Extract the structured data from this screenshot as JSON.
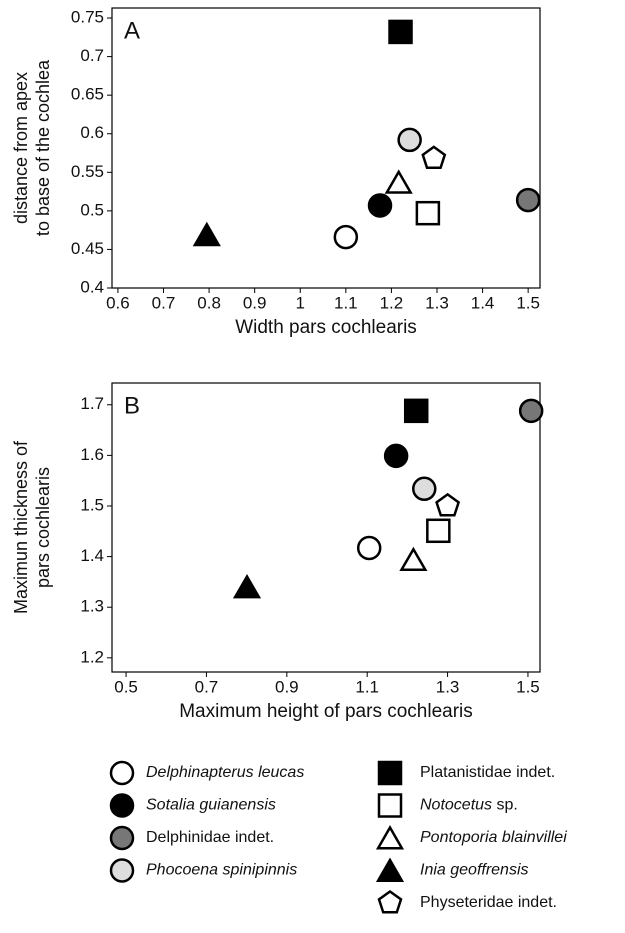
{
  "chart_data": [
    {
      "type": "scatter",
      "label": "A",
      "xlabel": "Width pars cochlearis",
      "ylabel": [
        "distance from apex",
        "to base of the cochlea"
      ],
      "xlim": [
        0.587,
        1.526
      ],
      "ylim": [
        0.4,
        0.763
      ],
      "xticks": [
        0.6,
        0.7,
        0.8,
        0.9,
        1,
        1.1,
        1.2,
        1.3,
        1.4,
        1.5
      ],
      "yticks": [
        0.4,
        0.45,
        0.5,
        0.55,
        0.6,
        0.65,
        0.7,
        0.75
      ],
      "series": [
        {
          "name": "Delphinapterus leucas",
          "italic_words": 2,
          "marker": "circle",
          "color": "#ffffff",
          "x": [
            1.1
          ],
          "values": [
            0.466
          ]
        },
        {
          "name": "Sotalia guianensis",
          "italic_words": 2,
          "marker": "circle",
          "color": "#000000",
          "x": [
            1.175
          ],
          "values": [
            0.507
          ]
        },
        {
          "name": "Delphinidae indet.",
          "italic_words": 0,
          "marker": "circle",
          "color": "#777777",
          "x": [
            1.5
          ],
          "values": [
            0.514
          ]
        },
        {
          "name": "Phocoena spinipinnis",
          "italic_words": 2,
          "marker": "circle",
          "color": "#dddddd",
          "x": [
            1.24
          ],
          "values": [
            0.592
          ]
        },
        {
          "name": "Platanistidae indet.",
          "italic_words": 0,
          "marker": "square",
          "color": "#000000",
          "x": [
            1.22
          ],
          "values": [
            0.732
          ]
        },
        {
          "name": "Notocetus sp.",
          "italic_words": 1,
          "marker": "square",
          "color": "#ffffff",
          "x": [
            1.28
          ],
          "values": [
            0.497
          ]
        },
        {
          "name": "Pontoporia blainvillei",
          "italic_words": 2,
          "marker": "triangle",
          "color": "#ffffff",
          "x": [
            1.216
          ],
          "values": [
            0.537
          ]
        },
        {
          "name": "Inia geoffrensis",
          "italic_words": 2,
          "marker": "triangle",
          "color": "#000000",
          "x": [
            0.795
          ],
          "values": [
            0.469
          ]
        },
        {
          "name": "Physeteridae indet.",
          "italic_words": 0,
          "marker": "pentagon",
          "color": "#ffffff",
          "x": [
            1.293
          ],
          "values": [
            0.568
          ]
        }
      ]
    },
    {
      "type": "scatter",
      "label": "B",
      "xlabel": "Maximum height of pars cochlearis",
      "ylabel": [
        "Maximun thickness of",
        "pars cochlearis"
      ],
      "xlim": [
        0.465,
        1.53
      ],
      "ylim": [
        1.172,
        1.743
      ],
      "xticks": [
        0.5,
        0.7,
        0.9,
        1.1,
        1.3,
        1.5
      ],
      "yticks": [
        1.2,
        1.3,
        1.4,
        1.5,
        1.6,
        1.7
      ],
      "series": [
        {
          "name": "Delphinapterus leucas",
          "marker": "circle",
          "color": "#ffffff",
          "x": [
            1.105
          ],
          "values": [
            1.417
          ]
        },
        {
          "name": "Sotalia guianensis",
          "marker": "circle",
          "color": "#000000",
          "x": [
            1.172
          ],
          "values": [
            1.599
          ]
        },
        {
          "name": "Delphinidae indet.",
          "marker": "circle",
          "color": "#777777",
          "x": [
            1.508
          ],
          "values": [
            1.688
          ]
        },
        {
          "name": "Phocoena spinipinnis",
          "marker": "circle",
          "color": "#dddddd",
          "x": [
            1.242
          ],
          "values": [
            1.534
          ]
        },
        {
          "name": "Platanistidae indet.",
          "marker": "square",
          "color": "#000000",
          "x": [
            1.222
          ],
          "values": [
            1.688
          ]
        },
        {
          "name": "Notocetus sp.",
          "marker": "square",
          "color": "#ffffff",
          "x": [
            1.277
          ],
          "values": [
            1.451
          ]
        },
        {
          "name": "Pontoporia blainvillei",
          "marker": "triangle",
          "color": "#ffffff",
          "x": [
            1.215
          ],
          "values": [
            1.394
          ]
        },
        {
          "name": "Inia geoffrensis",
          "marker": "triangle",
          "color": "#000000",
          "x": [
            0.801
          ],
          "values": [
            1.34
          ]
        },
        {
          "name": "Physeteridae indet.",
          "marker": "pentagon",
          "color": "#ffffff",
          "x": [
            1.3
          ],
          "values": [
            1.5
          ]
        }
      ]
    }
  ]
}
